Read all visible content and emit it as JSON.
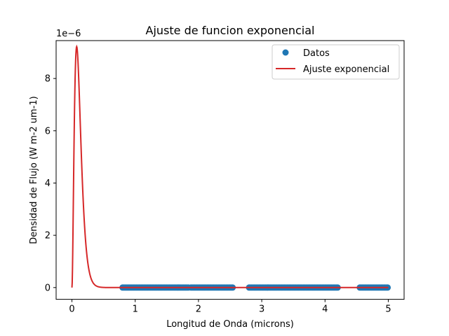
{
  "chart_data": {
    "type": "scatter+line",
    "title": "Ajuste de funcion exponencial",
    "xlabel": "Longitud de Onda (microns)",
    "ylabel": "Densidad de Flujo (W m-2 um-1)",
    "y_offset_label": "1e−6",
    "xlim": [
      -0.25,
      5.25
    ],
    "ylim": [
      -0.45,
      9.45
    ],
    "xticks": [
      0,
      1,
      2,
      3,
      4,
      5
    ],
    "xtick_labels": [
      "0",
      "1",
      "2",
      "3",
      "4",
      "5"
    ],
    "yticks": [
      0,
      2,
      4,
      6,
      8
    ],
    "ytick_labels": [
      "0",
      "2",
      "4",
      "6",
      "8"
    ],
    "legend": {
      "position": "upper right",
      "entries": [
        {
          "label": "Datos",
          "kind": "marker",
          "color": "#1f77b4"
        },
        {
          "label": "Ajuste exponencial",
          "kind": "line",
          "color": "#d62728"
        }
      ]
    },
    "series": [
      {
        "name": "Datos",
        "kind": "scatter",
        "color": "#1f77b4",
        "y_value": 0,
        "x_ranges": [
          [
            0.8,
            1.85
          ],
          [
            1.88,
            2.55
          ],
          [
            2.8,
            4.2
          ],
          [
            4.55,
            5.0
          ]
        ],
        "step": 0.02
      },
      {
        "name": "Ajuste exponencial",
        "kind": "line",
        "color": "#d62728",
        "function": "A * x^n * exp(-x/c)",
        "x_range": [
          0,
          5
        ],
        "peak_x": 0.075,
        "peak_y": 9.22
      }
    ]
  }
}
